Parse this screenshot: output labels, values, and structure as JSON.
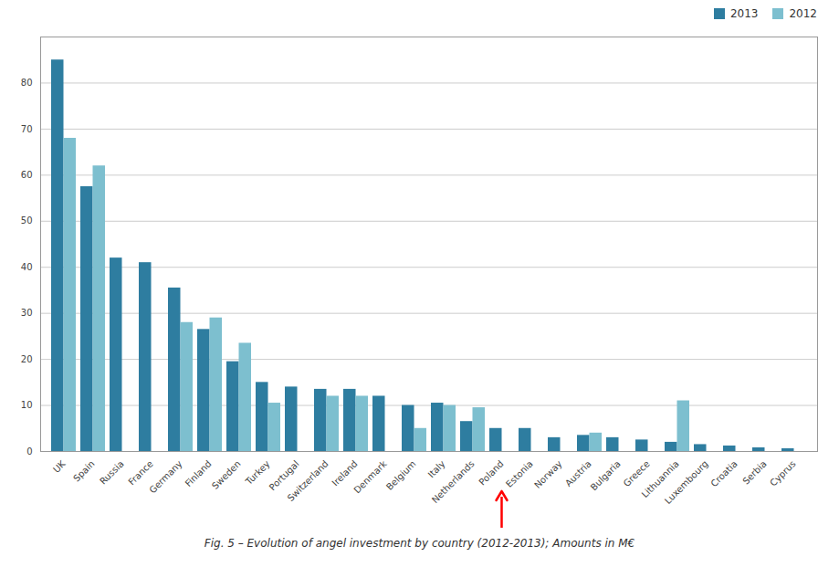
{
  "chart_data": {
    "type": "bar",
    "title": "Fig. 5 – Evolution of angel investment by country (2012-2013); Amounts in M€",
    "categories": [
      "UK",
      "Spain",
      "Russia",
      "France",
      "Germany",
      "Finland",
      "Sweden",
      "Turkey",
      "Portugal",
      "Switzerland",
      "Ireland",
      "Denmark",
      "Belgium",
      "Italy",
      "Netherlands",
      "Poland",
      "Estonia",
      "Norway",
      "Austria",
      "Bulgaria",
      "Greece",
      "Lithuannia",
      "Luxembourg",
      "Croatia",
      "Serbia",
      "Cyprus"
    ],
    "series": [
      {
        "name": "2013",
        "color": "#2e7da0",
        "values": [
          85,
          57.5,
          42,
          41,
          35.5,
          26.5,
          19.5,
          15,
          14,
          13.5,
          13.5,
          12,
          10,
          10.5,
          6.5,
          5,
          5,
          3,
          3.5,
          3,
          2.5,
          2,
          1.5,
          1.2,
          0.8,
          0.6
        ]
      },
      {
        "name": "2012",
        "color": "#7dbfcf",
        "values": [
          68,
          62,
          null,
          null,
          28,
          29,
          23.5,
          10.5,
          null,
          12,
          12,
          null,
          5,
          10,
          9.5,
          null,
          null,
          null,
          4,
          null,
          null,
          11,
          null,
          null,
          null,
          null
        ]
      }
    ],
    "ylim": [
      0,
      90
    ],
    "yticks": [
      0,
      10,
      20,
      30,
      40,
      50,
      60,
      70,
      80
    ],
    "grid": true,
    "legend": "upper right",
    "annotations": [
      {
        "type": "arrow",
        "category": "Poland",
        "color": "red"
      }
    ]
  }
}
